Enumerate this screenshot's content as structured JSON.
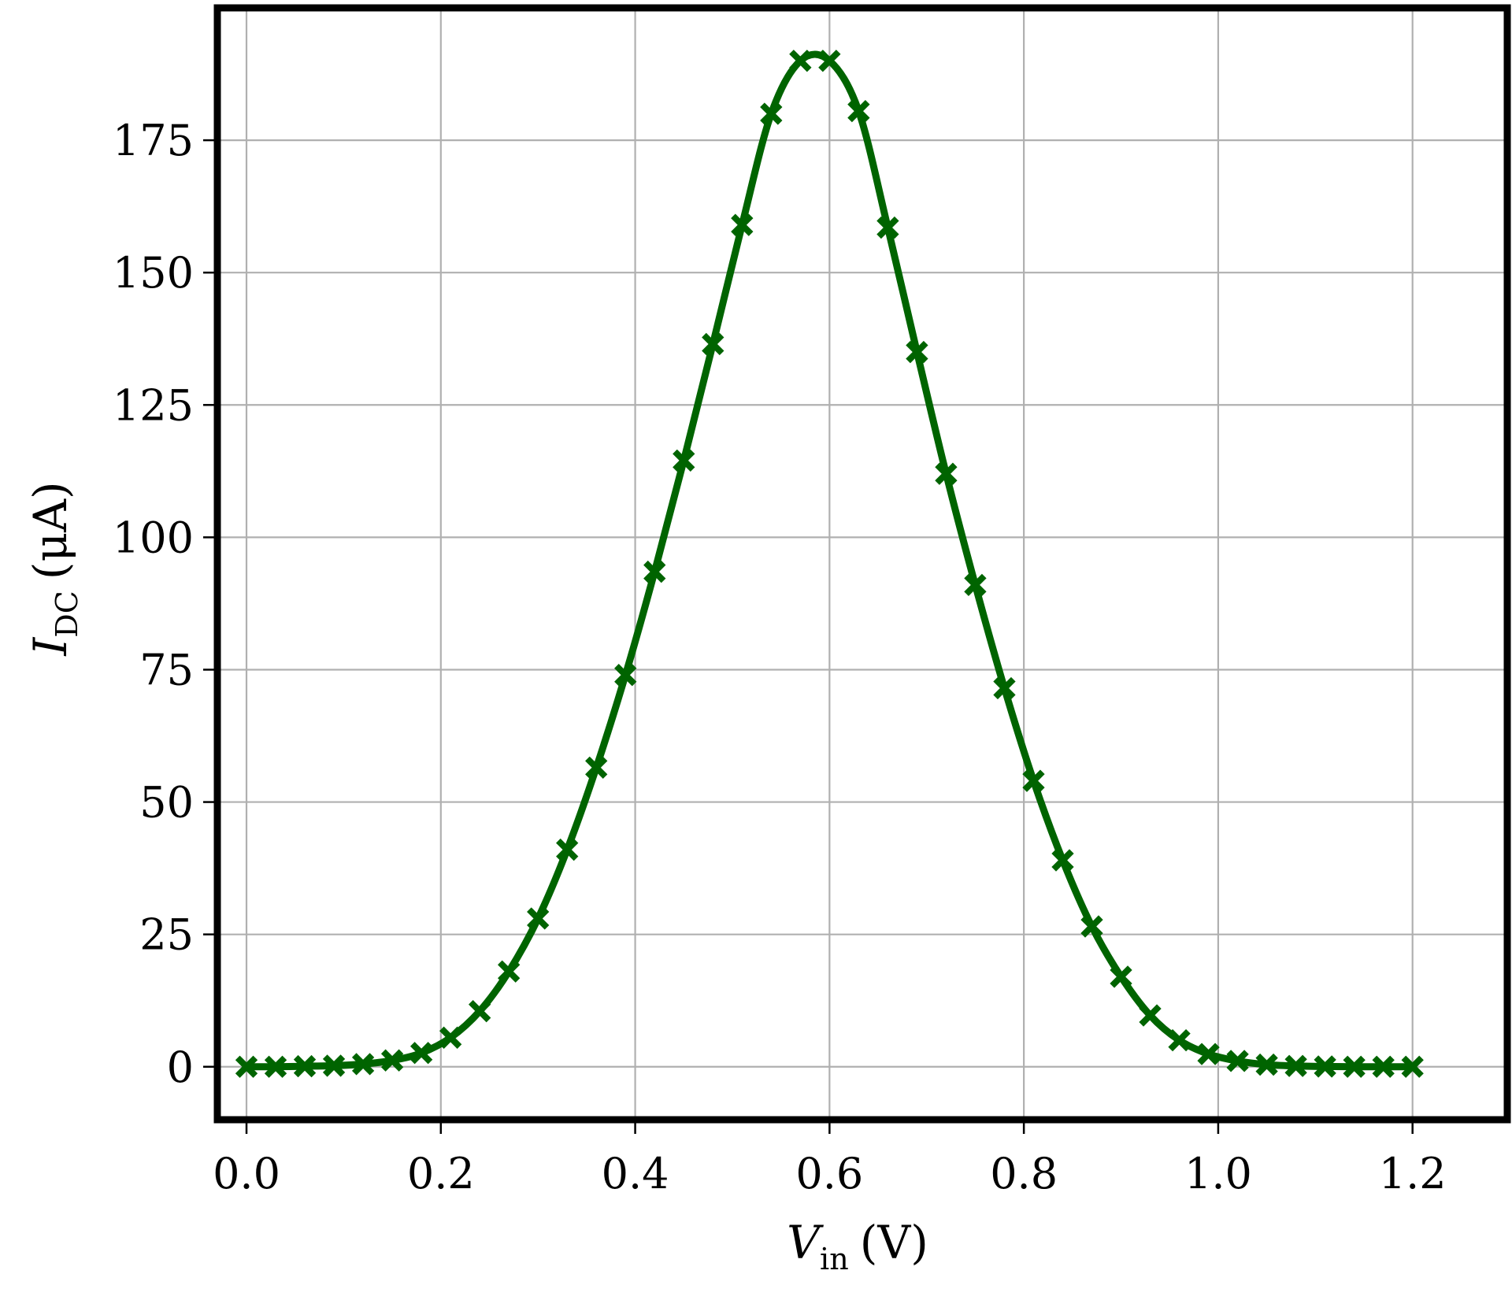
{
  "chart_data": {
    "type": "line",
    "title": "",
    "xlabel": {
      "symbol": "V",
      "subscript": "in",
      "unit": "(V)"
    },
    "ylabel": {
      "symbol": "I",
      "subscript": "DC",
      "unit": "(μA)"
    },
    "xlim": [
      -0.03,
      1.2975
    ],
    "ylim": [
      -10,
      200
    ],
    "xticks": [
      0.0,
      0.2,
      0.4,
      0.6,
      0.8,
      1.0,
      1.2
    ],
    "xtick_labels": [
      "0.0",
      "0.2",
      "0.4",
      "0.6",
      "0.8",
      "1.0",
      "1.2"
    ],
    "yticks": [
      0,
      25,
      50,
      75,
      100,
      125,
      150,
      175
    ],
    "ytick_labels": [
      "0",
      "25",
      "50",
      "75",
      "100",
      "125",
      "150",
      "175"
    ],
    "grid": true,
    "legend": "none",
    "series": [
      {
        "color": "#006400",
        "marker": "X",
        "x": [
          0.0,
          0.03,
          0.06,
          0.09,
          0.12,
          0.15,
          0.18,
          0.21,
          0.24,
          0.27,
          0.3,
          0.33,
          0.36,
          0.39,
          0.42,
          0.45,
          0.48,
          0.51,
          0.54,
          0.57,
          0.6,
          0.63,
          0.66,
          0.69,
          0.72,
          0.75,
          0.78,
          0.81,
          0.84,
          0.87,
          0.9,
          0.93,
          0.96,
          0.99,
          1.02,
          1.05,
          1.08,
          1.11,
          1.14,
          1.17,
          1.2
        ],
        "y": [
          0.0,
          0.0,
          0.1,
          0.2,
          0.5,
          1.2,
          2.6,
          5.5,
          10.5,
          18.0,
          28.0,
          41.0,
          56.5,
          74.0,
          93.5,
          114.5,
          136.5,
          159.0,
          180.0,
          190.0,
          190.0,
          180.5,
          158.5,
          135.0,
          112.0,
          91.0,
          71.5,
          54.0,
          39.0,
          26.5,
          17.0,
          9.7,
          5.0,
          2.4,
          1.1,
          0.4,
          0.15,
          0.05,
          0.0,
          0.0,
          0.0
        ]
      }
    ]
  }
}
